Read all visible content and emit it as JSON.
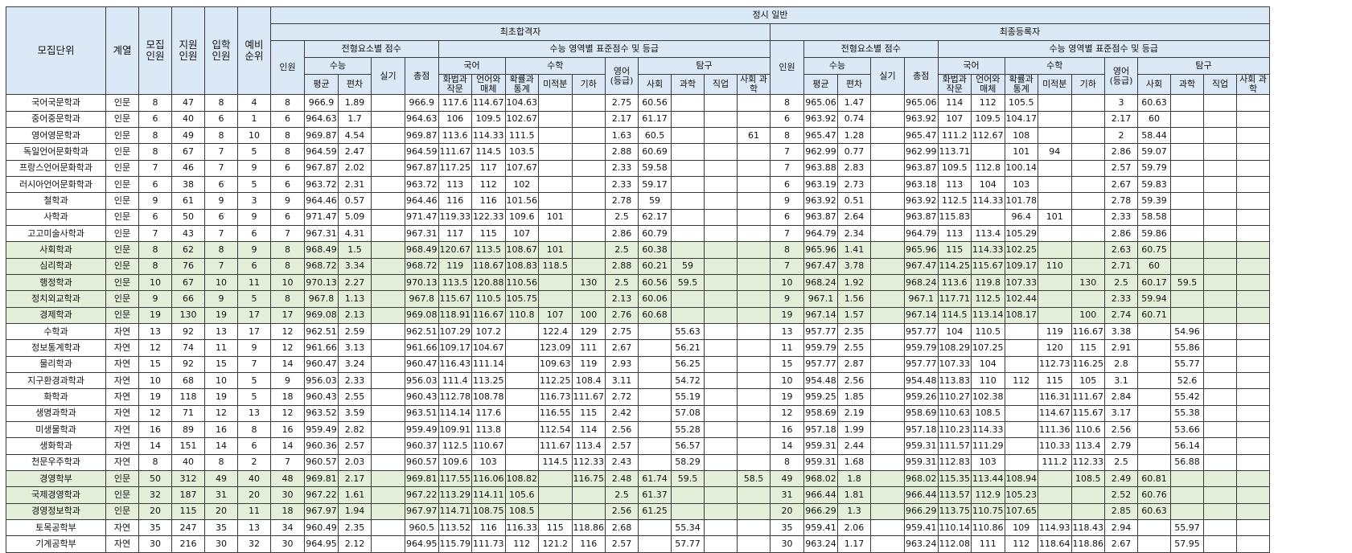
{
  "headers": {
    "unit": "모집단위",
    "field": "계열",
    "recruit": "모집 인원",
    "applicants": "지원 인원",
    "enrolled": "입학 인원",
    "waitlist": "예비 순위",
    "top": "정시 일반",
    "first_pass": "최초합격자",
    "final_reg": "최종등록자",
    "count": "인원",
    "element_score": "전형요소별 점수",
    "suneung_score": "수능 영역별 표준점수 및 등급",
    "suneung": "수능",
    "practical": "실기",
    "total": "총점",
    "korean": "국어",
    "math": "수학",
    "english": "영어 (등급)",
    "inquiry": "탐구",
    "avg": "평균",
    "dev": "편차",
    "k1": "화법과 작문",
    "k2": "언어와 매체",
    "m1": "확률과 통계",
    "m2": "미적분",
    "m3": "기하",
    "i1": "사회",
    "i2": "과학",
    "i3": "직업",
    "i4": "사회 과학"
  },
  "rows": [
    {
      "c": [
        "국어국문학과",
        "인문",
        "8",
        "47",
        "8",
        "4",
        "8",
        "966.9",
        "1.89",
        "",
        "966.9",
        "117.6",
        "114.67",
        "104.63",
        "",
        "",
        "2.75",
        "60.56",
        "",
        "",
        "",
        "8",
        "965.06",
        "1.47",
        "",
        "965.06",
        "114",
        "112",
        "105.5",
        "",
        "",
        "3",
        "60.63",
        "",
        "",
        ""
      ],
      "g": false
    },
    {
      "c": [
        "중어중문학과",
        "인문",
        "6",
        "40",
        "6",
        "1",
        "6",
        "964.63",
        "1.7",
        "",
        "964.63",
        "106",
        "109.5",
        "102.67",
        "",
        "",
        "2.17",
        "61.17",
        "",
        "",
        "",
        "6",
        "963.92",
        "0.74",
        "",
        "963.92",
        "107",
        "109.5",
        "104.17",
        "",
        "",
        "2.17",
        "60",
        "",
        "",
        ""
      ],
      "g": false
    },
    {
      "c": [
        "영어영문학과",
        "인문",
        "8",
        "49",
        "8",
        "10",
        "8",
        "969.87",
        "4.54",
        "",
        "969.87",
        "113.6",
        "114.33",
        "111.5",
        "",
        "",
        "1.63",
        "60.5",
        "",
        "",
        "61",
        "8",
        "965.47",
        "1.28",
        "",
        "965.47",
        "111.2",
        "112.67",
        "108",
        "",
        "",
        "2",
        "58.44",
        "",
        "",
        ""
      ],
      "g": false
    },
    {
      "c": [
        "독일언어문화학과",
        "인문",
        "8",
        "67",
        "7",
        "5",
        "8",
        "964.59",
        "2.47",
        "",
        "964.59",
        "111.67",
        "114.5",
        "103.5",
        "",
        "",
        "2.88",
        "60.69",
        "",
        "",
        "",
        "7",
        "962.99",
        "0.77",
        "",
        "962.99",
        "113.71",
        "",
        "101",
        "94",
        "",
        "2.86",
        "59.07",
        "",
        "",
        ""
      ],
      "g": false
    },
    {
      "c": [
        "프랑스언어문화학과",
        "인문",
        "7",
        "46",
        "7",
        "9",
        "6",
        "967.87",
        "2.02",
        "",
        "967.87",
        "117.25",
        "117",
        "107.67",
        "",
        "",
        "2.33",
        "59.58",
        "",
        "",
        "",
        "7",
        "963.88",
        "2.83",
        "",
        "963.87",
        "109.5",
        "112.8",
        "100.14",
        "",
        "",
        "2.57",
        "59.79",
        "",
        "",
        ""
      ],
      "g": false
    },
    {
      "c": [
        "러시아언어문화학과",
        "인문",
        "6",
        "38",
        "6",
        "5",
        "6",
        "963.72",
        "2.31",
        "",
        "963.72",
        "113",
        "112",
        "102",
        "",
        "",
        "2.33",
        "59.17",
        "",
        "",
        "",
        "6",
        "963.19",
        "2.73",
        "",
        "963.18",
        "113",
        "104",
        "103",
        "",
        "",
        "2.67",
        "59.83",
        "",
        "",
        ""
      ],
      "g": false
    },
    {
      "c": [
        "철학과",
        "인문",
        "9",
        "61",
        "9",
        "3",
        "9",
        "964.46",
        "0.57",
        "",
        "964.46",
        "116",
        "116",
        "101.56",
        "",
        "",
        "2.78",
        "59",
        "",
        "",
        "",
        "9",
        "963.92",
        "0.51",
        "",
        "963.92",
        "112.5",
        "114.33",
        "101.78",
        "",
        "",
        "2.78",
        "59.39",
        "",
        "",
        ""
      ],
      "g": false
    },
    {
      "c": [
        "사학과",
        "인문",
        "6",
        "50",
        "6",
        "9",
        "6",
        "971.47",
        "5.09",
        "",
        "971.47",
        "119.33",
        "122.33",
        "109.6",
        "101",
        "",
        "2.5",
        "62.17",
        "",
        "",
        "",
        "6",
        "963.87",
        "2.64",
        "",
        "963.87",
        "115.83",
        "",
        "96.4",
        "101",
        "",
        "2.33",
        "58.58",
        "",
        "",
        ""
      ],
      "g": false
    },
    {
      "c": [
        "고고미술사학과",
        "인문",
        "7",
        "43",
        "7",
        "6",
        "7",
        "967.31",
        "4.31",
        "",
        "967.31",
        "117",
        "115",
        "107",
        "",
        "",
        "2.86",
        "60.79",
        "",
        "",
        "",
        "7",
        "964.79",
        "2.34",
        "",
        "964.79",
        "113",
        "113.4",
        "105.29",
        "",
        "",
        "2.86",
        "59.86",
        "",
        "",
        ""
      ],
      "g": false
    },
    {
      "c": [
        "사회학과",
        "인문",
        "8",
        "62",
        "8",
        "9",
        "8",
        "968.49",
        "1.5",
        "",
        "968.49",
        "120.67",
        "113.5",
        "108.67",
        "101",
        "",
        "2.5",
        "60.38",
        "",
        "",
        "",
        "8",
        "965.96",
        "1.41",
        "",
        "965.96",
        "115",
        "114.33",
        "102.25",
        "",
        "",
        "2.63",
        "60.75",
        "",
        "",
        ""
      ],
      "g": true
    },
    {
      "c": [
        "심리학과",
        "인문",
        "8",
        "76",
        "7",
        "6",
        "8",
        "968.72",
        "3.34",
        "",
        "968.72",
        "119",
        "118.67",
        "108.83",
        "118.5",
        "",
        "2.88",
        "60.21",
        "59",
        "",
        "",
        "7",
        "967.47",
        "3.78",
        "",
        "967.47",
        "114.25",
        "115.67",
        "109.17",
        "110",
        "",
        "2.71",
        "60",
        "",
        "",
        ""
      ],
      "g": true
    },
    {
      "c": [
        "행정학과",
        "인문",
        "10",
        "67",
        "10",
        "11",
        "10",
        "970.13",
        "2.27",
        "",
        "970.13",
        "113.5",
        "120.88",
        "110.56",
        "",
        "130",
        "2.5",
        "60.56",
        "59.5",
        "",
        "",
        "10",
        "968.24",
        "1.92",
        "",
        "968.24",
        "113.6",
        "119.8",
        "107.33",
        "",
        "130",
        "2.5",
        "60.17",
        "59.5",
        "",
        ""
      ],
      "g": true
    },
    {
      "c": [
        "정치외교학과",
        "인문",
        "9",
        "66",
        "9",
        "5",
        "8",
        "967.8",
        "1.13",
        "",
        "967.8",
        "115.67",
        "110.5",
        "105.75",
        "",
        "",
        "2.13",
        "60.06",
        "",
        "",
        "",
        "9",
        "967.1",
        "1.56",
        "",
        "967.1",
        "117.71",
        "112.5",
        "102.44",
        "",
        "",
        "2.33",
        "59.94",
        "",
        "",
        ""
      ],
      "g": true
    },
    {
      "c": [
        "경제학과",
        "인문",
        "19",
        "130",
        "19",
        "17",
        "17",
        "969.08",
        "2.13",
        "",
        "969.08",
        "118.91",
        "116.67",
        "110.8",
        "107",
        "100",
        "2.76",
        "60.68",
        "",
        "",
        "",
        "19",
        "967.14",
        "1.57",
        "",
        "967.14",
        "114.5",
        "113.14",
        "108.17",
        "",
        "100",
        "2.74",
        "60.71",
        "",
        "",
        ""
      ],
      "g": true
    },
    {
      "c": [
        "수학과",
        "자연",
        "13",
        "92",
        "13",
        "17",
        "12",
        "962.51",
        "2.59",
        "",
        "962.51",
        "107.29",
        "107.2",
        "",
        "122.4",
        "129",
        "2.75",
        "",
        "55.63",
        "",
        "",
        "13",
        "957.77",
        "2.35",
        "",
        "957.77",
        "104",
        "110.5",
        "",
        "119",
        "116.67",
        "3.38",
        "",
        "54.96",
        "",
        ""
      ],
      "g": false
    },
    {
      "c": [
        "정보통계학과",
        "자연",
        "12",
        "74",
        "11",
        "9",
        "12",
        "961.66",
        "3.13",
        "",
        "961.66",
        "109.17",
        "104.67",
        "",
        "123.09",
        "111",
        "2.67",
        "",
        "56.21",
        "",
        "",
        "11",
        "959.79",
        "2.55",
        "",
        "959.79",
        "108.29",
        "107.25",
        "",
        "120",
        "115",
        "2.91",
        "",
        "55.86",
        "",
        ""
      ],
      "g": false
    },
    {
      "c": [
        "물리학과",
        "자연",
        "15",
        "92",
        "15",
        "7",
        "14",
        "960.47",
        "3.24",
        "",
        "960.47",
        "116.43",
        "111.14",
        "",
        "109.63",
        "119",
        "2.93",
        "",
        "56.25",
        "",
        "",
        "15",
        "957.77",
        "2.87",
        "",
        "957.77",
        "107.33",
        "104",
        "",
        "112.73",
        "116.25",
        "2.8",
        "",
        "55.77",
        "",
        ""
      ],
      "g": false
    },
    {
      "c": [
        "지구환경과학과",
        "자연",
        "10",
        "68",
        "10",
        "5",
        "9",
        "956.03",
        "2.33",
        "",
        "956.03",
        "111.4",
        "113.25",
        "",
        "112.25",
        "108.4",
        "3.11",
        "",
        "54.72",
        "",
        "",
        "10",
        "954.48",
        "2.56",
        "",
        "954.48",
        "113.83",
        "110",
        "112",
        "115",
        "105",
        "3.1",
        "",
        "52.6",
        "",
        ""
      ],
      "g": false
    },
    {
      "c": [
        "화학과",
        "자연",
        "19",
        "118",
        "19",
        "5",
        "18",
        "960.43",
        "2.55",
        "",
        "960.43",
        "112.78",
        "108.78",
        "",
        "116.73",
        "111.67",
        "2.72",
        "",
        "55.19",
        "",
        "",
        "19",
        "959.25",
        "1.85",
        "",
        "959.26",
        "110.27",
        "102.38",
        "",
        "116.31",
        "111.67",
        "2.84",
        "",
        "55.42",
        "",
        ""
      ],
      "g": false
    },
    {
      "c": [
        "생명과학과",
        "자연",
        "12",
        "71",
        "12",
        "13",
        "12",
        "963.52",
        "3.59",
        "",
        "963.51",
        "114.14",
        "117.6",
        "",
        "116.55",
        "115",
        "2.42",
        "",
        "57.08",
        "",
        "",
        "12",
        "958.69",
        "2.19",
        "",
        "958.69",
        "110.63",
        "108.5",
        "",
        "114.67",
        "115.67",
        "3.17",
        "",
        "55.38",
        "",
        ""
      ],
      "g": false
    },
    {
      "c": [
        "미생물학과",
        "자연",
        "16",
        "89",
        "16",
        "8",
        "16",
        "959.49",
        "2.82",
        "",
        "959.49",
        "109.91",
        "113.8",
        "",
        "112.54",
        "114",
        "2.56",
        "",
        "55.28",
        "",
        "",
        "16",
        "957.18",
        "1.99",
        "",
        "957.18",
        "110.23",
        "114.33",
        "",
        "111.36",
        "110.6",
        "2.56",
        "",
        "53.66",
        "",
        ""
      ],
      "g": false
    },
    {
      "c": [
        "생화학과",
        "자연",
        "14",
        "151",
        "14",
        "6",
        "14",
        "960.36",
        "2.57",
        "",
        "960.37",
        "112.5",
        "110.67",
        "",
        "111.67",
        "113.4",
        "2.57",
        "",
        "56.57",
        "",
        "",
        "14",
        "959.31",
        "2.44",
        "",
        "959.31",
        "111.57",
        "111.29",
        "",
        "110.33",
        "113.4",
        "2.79",
        "",
        "56.14",
        "",
        ""
      ],
      "g": false
    },
    {
      "c": [
        "천문우주학과",
        "자연",
        "8",
        "40",
        "8",
        "2",
        "7",
        "960.57",
        "2.03",
        "",
        "960.57",
        "109.6",
        "103",
        "",
        "114.5",
        "112.33",
        "2.43",
        "",
        "58.29",
        "",
        "",
        "8",
        "959.31",
        "1.68",
        "",
        "959.31",
        "112.83",
        "103",
        "",
        "111.2",
        "112.33",
        "2.5",
        "",
        "56.88",
        "",
        ""
      ],
      "g": false
    },
    {
      "c": [
        "경영학부",
        "인문",
        "50",
        "312",
        "49",
        "40",
        "48",
        "969.81",
        "2.17",
        "",
        "969.81",
        "117.55",
        "116.06",
        "108.82",
        "",
        "116.75",
        "2.48",
        "61.74",
        "59.5",
        "",
        "58.5",
        "49",
        "968.02",
        "1.8",
        "",
        "968.02",
        "115.35",
        "113.44",
        "108.94",
        "",
        "108.5",
        "2.49",
        "60.81",
        "",
        "",
        ""
      ],
      "g": true
    },
    {
      "c": [
        "국제경영학과",
        "인문",
        "32",
        "187",
        "31",
        "20",
        "30",
        "967.22",
        "1.61",
        "",
        "967.22",
        "113.29",
        "114.11",
        "105.6",
        "",
        "",
        "2.5",
        "61.37",
        "",
        "",
        "",
        "31",
        "966.44",
        "1.81",
        "",
        "966.44",
        "113.57",
        "112.9",
        "105.23",
        "",
        "",
        "2.52",
        "60.76",
        "",
        "",
        ""
      ],
      "g": true
    },
    {
      "c": [
        "경영정보학과",
        "인문",
        "20",
        "115",
        "20",
        "11",
        "18",
        "967.97",
        "1.94",
        "",
        "967.97",
        "114.71",
        "108.75",
        "108.5",
        "",
        "",
        "2.56",
        "61.25",
        "",
        "",
        "",
        "20",
        "966.29",
        "1.3",
        "",
        "966.29",
        "113.75",
        "110.75",
        "107.65",
        "",
        "",
        "2.85",
        "60.63",
        "",
        "",
        ""
      ],
      "g": true
    },
    {
      "c": [
        "토목공학부",
        "자연",
        "35",
        "247",
        "35",
        "13",
        "34",
        "960.49",
        "2.35",
        "",
        "960.5",
        "113.52",
        "116",
        "116.33",
        "115",
        "118.86",
        "2.68",
        "",
        "55.34",
        "",
        "",
        "35",
        "959.41",
        "2.06",
        "",
        "959.41",
        "110.14",
        "110.86",
        "109",
        "114.93",
        "118.43",
        "2.94",
        "",
        "55.97",
        "",
        ""
      ],
      "g": false
    },
    {
      "c": [
        "기계공학부",
        "자연",
        "30",
        "216",
        "30",
        "32",
        "30",
        "964.95",
        "2.12",
        "",
        "964.95",
        "115.79",
        "111.73",
        "112",
        "121.2",
        "116",
        "2.57",
        "",
        "57.77",
        "",
        "",
        "30",
        "963.24",
        "1.17",
        "",
        "963.24",
        "112.08",
        "111",
        "112",
        "118.64",
        "118.86",
        "2.67",
        "",
        "57.95",
        "",
        ""
      ],
      "g": false
    }
  ]
}
